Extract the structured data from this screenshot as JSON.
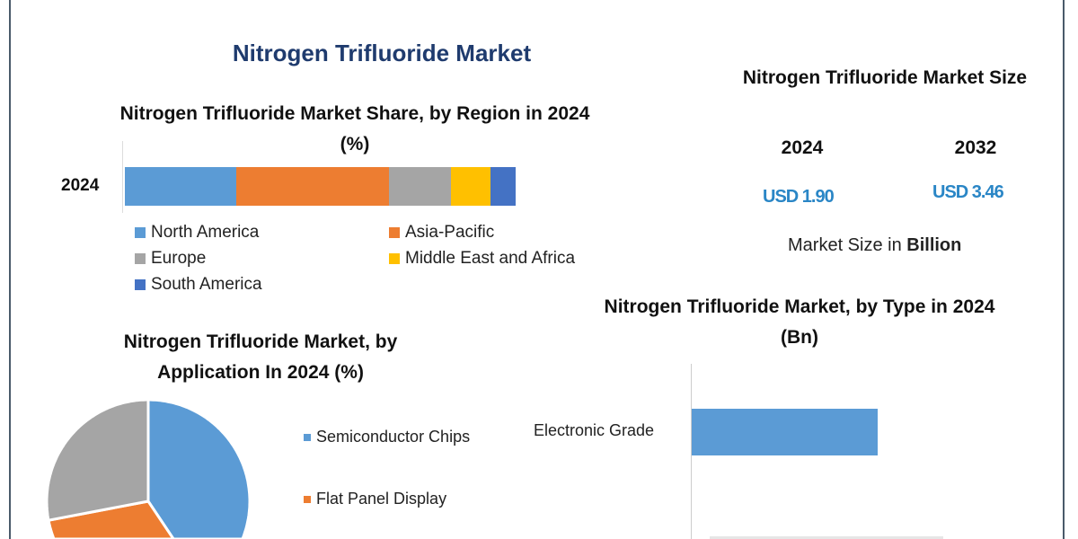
{
  "main_title": "Nitrogen Trifluoride Market",
  "market_size": {
    "title": "Nitrogen Trifluoride Market Size",
    "years": [
      "2024",
      "2032"
    ],
    "values": [
      "USD 1.90",
      "USD 3.46"
    ],
    "note_prefix": "Market Size in ",
    "note_bold": "Billion"
  },
  "chart_data": [
    {
      "type": "bar",
      "orientation": "horizontal-stacked",
      "title": "Nitrogen Trifluoride Market Share, by Region in 2024 (%)",
      "categories": [
        "2024"
      ],
      "series": [
        {
          "name": "North America",
          "values": [
            28.5
          ],
          "color": "#5b9bd5"
        },
        {
          "name": "Asia-Pacific",
          "values": [
            39
          ],
          "color": "#ed7d31"
        },
        {
          "name": "Europe",
          "values": [
            16
          ],
          "color": "#a5a5a5"
        },
        {
          "name": "Middle East and Africa",
          "values": [
            10
          ],
          "color": "#ffc000"
        },
        {
          "name": "South America",
          "values": [
            6.5
          ],
          "color": "#4472c4"
        }
      ],
      "legend": "bottom"
    },
    {
      "type": "pie",
      "title": "Nitrogen Trifluoride Market, by Application In 2024 (%)",
      "slices": [
        {
          "name": "Semiconductor Chips",
          "value": 46,
          "color": "#5b9bd5"
        },
        {
          "name": "Flat Panel Display",
          "value": 26,
          "color": "#ed7d31"
        },
        {
          "name": "",
          "value": 28,
          "color": "#a5a5a5"
        }
      ],
      "legend": "right"
    },
    {
      "type": "bar",
      "orientation": "horizontal",
      "title": "Nitrogen Trifluoride Market, by Type in 2024 (Bn)",
      "categories": [
        "Electronic Grade"
      ],
      "values": [
        1.5
      ],
      "xlim": [
        0,
        2.5
      ],
      "color": "#5b9bd5"
    }
  ]
}
